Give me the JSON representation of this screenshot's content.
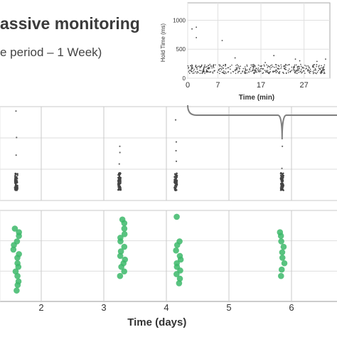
{
  "header": {
    "title": "assive monitoring",
    "subtitle": "e period – 1 Week)"
  },
  "colors": {
    "green": "#3cb86a",
    "dark": "#444444",
    "grid": "#c8c8c8",
    "bracket": "#7f7f7f"
  },
  "chart_data": [
    {
      "type": "scatter",
      "name": "inset",
      "xlabel": "Time (min)",
      "ylabel": "Hold Time (ms)",
      "xlim": [
        0,
        33
      ],
      "ylim": [
        0,
        1300
      ],
      "xticks": [
        0,
        7,
        17,
        27
      ],
      "yticks": [
        0,
        500,
        1000
      ],
      "band": {
        "xrange": [
          0,
          32
        ],
        "ymin": 80,
        "ymax": 240
      },
      "outliers": [
        [
          1,
          850
        ],
        [
          2,
          880
        ],
        [
          2,
          700
        ],
        [
          8,
          650
        ],
        [
          11,
          350
        ],
        [
          18,
          270
        ],
        [
          20,
          390
        ],
        [
          25,
          330
        ],
        [
          26,
          300
        ],
        [
          30,
          290
        ],
        [
          32,
          330
        ]
      ]
    },
    {
      "type": "scatter",
      "name": "hold-time-days",
      "xlim": [
        0.7,
        6.4
      ],
      "xticks": [
        2,
        3,
        4,
        5,
        6
      ],
      "series": [
        {
          "day": 1.6,
          "dense": [
            0.05,
            0.25
          ],
          "sparse": [
            0.45,
            0.65,
            0.95
          ]
        },
        {
          "day": 3.25,
          "dense": [
            0.05,
            0.25
          ],
          "sparse": [
            0.35,
            0.48,
            0.55
          ]
        },
        {
          "day": 4.15,
          "dense": [
            0.05,
            0.25
          ],
          "sparse": [
            0.38,
            0.5,
            0.6,
            0.85
          ]
        },
        {
          "day": 5.85,
          "dense": [
            0.05,
            0.25
          ],
          "sparse": [
            0.3,
            0.55
          ]
        }
      ]
    },
    {
      "type": "scatter",
      "name": "green-days",
      "xlabel": "Time (days)",
      "xlim": [
        0.7,
        6.4
      ],
      "xticks": [
        2,
        3,
        4,
        5,
        6
      ],
      "series": [
        {
          "day": 1.6,
          "values": [
            0.12,
            0.18,
            0.22,
            0.28,
            0.33,
            0.38,
            0.42,
            0.48,
            0.52,
            0.57,
            0.62,
            0.66,
            0.72,
            0.76,
            0.8
          ]
        },
        {
          "day": 3.3,
          "values": [
            0.28,
            0.33,
            0.38,
            0.42,
            0.46,
            0.5,
            0.55,
            0.6,
            0.66,
            0.7,
            0.74,
            0.8,
            0.86,
            0.9
          ]
        },
        {
          "day": 4.2,
          "values": [
            0.2,
            0.25,
            0.3,
            0.34,
            0.38,
            0.42,
            0.46,
            0.5,
            0.56,
            0.62,
            0.66,
            0.93
          ]
        },
        {
          "day": 5.85,
          "values": [
            0.28,
            0.35,
            0.42,
            0.48,
            0.54,
            0.6,
            0.66,
            0.72,
            0.76
          ]
        }
      ]
    }
  ]
}
